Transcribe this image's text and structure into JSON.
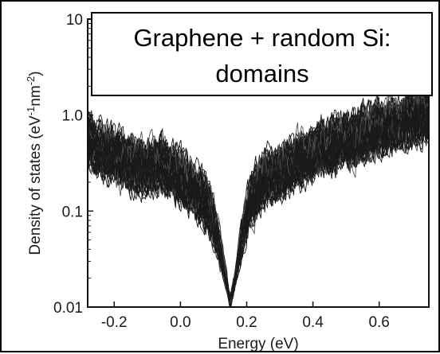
{
  "chart_data": {
    "type": "line",
    "title_lines": [
      "Graphene + random Si:",
      "domains"
    ],
    "xlabel": "Energy (eV)",
    "ylabel_main": "Density of states (eV",
    "ylabel_sup1": "-1",
    "ylabel_mid": "nm",
    "ylabel_sup2": "-2",
    "ylabel_end": ")",
    "xlim": [
      -0.28,
      0.75
    ],
    "ylim": [
      0.01,
      10
    ],
    "yscale": "log",
    "x_ticks": [
      -0.2,
      0.0,
      0.2,
      0.4,
      0.6
    ],
    "x_tick_labels": [
      "-0.2",
      "0.0",
      "0.2",
      "0.4",
      "0.6"
    ],
    "y_ticks": [
      0.01,
      0.1,
      1.0,
      10
    ],
    "y_tick_labels": [
      "0.01",
      "0.1",
      "1.0",
      "10"
    ],
    "grid": false,
    "legend": "none",
    "line_color": "#1a1a1a",
    "ensemble_curves": 60,
    "mean_curve": {
      "x": [
        -0.28,
        -0.25,
        -0.2,
        -0.15,
        -0.1,
        -0.05,
        0.0,
        0.05,
        0.08,
        0.1,
        0.12,
        0.14,
        0.15,
        0.16,
        0.18,
        0.2,
        0.22,
        0.25,
        0.3,
        0.35,
        0.4,
        0.45,
        0.5,
        0.55,
        0.6,
        0.65,
        0.7,
        0.75
      ],
      "y": [
        0.55,
        0.45,
        0.38,
        0.3,
        0.28,
        0.3,
        0.22,
        0.16,
        0.12,
        0.08,
        0.04,
        0.018,
        0.011,
        0.016,
        0.04,
        0.09,
        0.15,
        0.2,
        0.25,
        0.33,
        0.4,
        0.5,
        0.55,
        0.62,
        0.7,
        0.8,
        0.9,
        1.0
      ]
    }
  }
}
